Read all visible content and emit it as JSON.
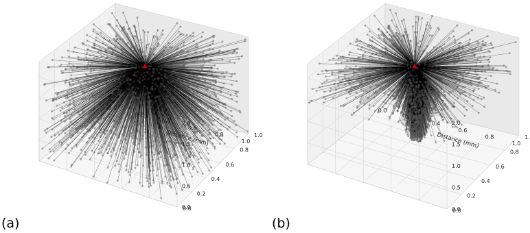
{
  "chart_data": [
    {
      "type": "scatter",
      "panel_label": "(a)",
      "xlabel": "Distance (mm)",
      "ylabel": "",
      "zlabel": "",
      "xticks": [
        "0.0",
        "0.2",
        "0.4",
        "0.6",
        "0.8",
        "1.0"
      ],
      "yticks": [
        "0.0",
        "0.2",
        "0.4",
        "0.6",
        "0.8",
        "1.0"
      ],
      "zticks": [
        "0.0",
        "0.5",
        "1.0",
        "1.5",
        "2.0"
      ],
      "xlim": [
        0,
        1
      ],
      "ylim": [
        0,
        1
      ],
      "zlim": [
        0,
        2.3
      ],
      "grid": true,
      "source": {
        "x": 0.5,
        "y": 0.5,
        "z": 2.0,
        "marker": "triangle",
        "color": "#cc0000"
      },
      "endpoints": {
        "count": 1600,
        "distribution": "uniform",
        "x_range": [
          0.0,
          1.0
        ],
        "y_range": [
          0.0,
          1.0
        ],
        "z_range": [
          0.0,
          2.3
        ],
        "color": "#000000"
      }
    },
    {
      "type": "scatter",
      "panel_label": "(b)",
      "xlabel": "Distance (mm)",
      "ylabel": "",
      "zlabel": "",
      "xticks": [
        "0.0",
        "0.2",
        "0.4",
        "0.6",
        "0.8",
        "1.0"
      ],
      "yticks": [
        "0.0",
        "0.2",
        "0.4",
        "0.6",
        "0.8",
        "1.0"
      ],
      "zticks": [
        "0.0",
        "0.5",
        "1.0",
        "1.5",
        "2.0"
      ],
      "xlim": [
        0,
        1
      ],
      "ylim": [
        0,
        1
      ],
      "zlim": [
        0,
        2.3
      ],
      "grid": true,
      "source": {
        "x": 0.5,
        "y": 0.5,
        "z": 2.0,
        "marker": "triangle",
        "color": "#cc0000"
      },
      "endpoints": {
        "count": 1600,
        "distribution": "cone",
        "x_range": [
          0.0,
          1.0
        ],
        "y_range": [
          0.0,
          1.0
        ],
        "z_range": [
          0.35,
          2.3
        ],
        "color": "#000000"
      }
    }
  ]
}
